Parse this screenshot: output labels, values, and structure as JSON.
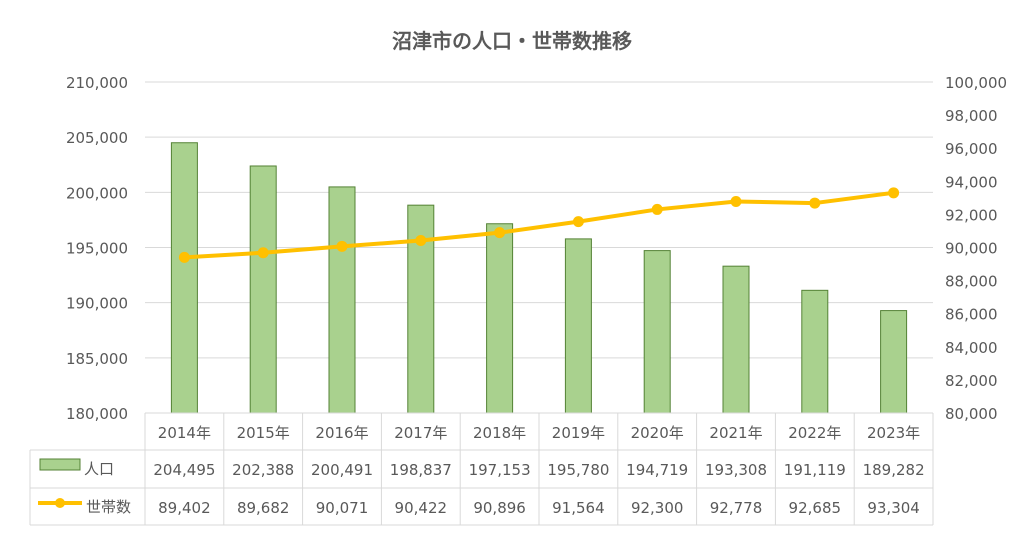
{
  "chart_data": {
    "type": "bar+line",
    "title": "沼津市の人口・世帯数推移",
    "categories": [
      "2014年",
      "2015年",
      "2016年",
      "2017年",
      "2018年",
      "2019年",
      "2020年",
      "2021年",
      "2022年",
      "2023年"
    ],
    "series": [
      {
        "name": "人口",
        "type": "bar",
        "axis": "left",
        "color": "#a9d18e",
        "edge_color": "#548235",
        "values": [
          204495,
          202388,
          200491,
          198837,
          197153,
          195780,
          194719,
          193308,
          191119,
          189282
        ],
        "labels": [
          "204,495",
          "202,388",
          "200,491",
          "198,837",
          "197,153",
          "195,780",
          "194,719",
          "193,308",
          "191,119",
          "189,282"
        ]
      },
      {
        "name": "世帯数",
        "type": "line",
        "axis": "right",
        "color": "#ffc000",
        "values": [
          89402,
          89682,
          90071,
          90422,
          90896,
          91564,
          92300,
          92778,
          92685,
          93304
        ],
        "labels": [
          "89,402",
          "89,682",
          "90,071",
          "90,422",
          "90,896",
          "91,564",
          "92,300",
          "92,778",
          "92,685",
          "93,304"
        ]
      }
    ],
    "y_left": {
      "range": [
        180000,
        210000
      ],
      "ticks": [
        "180,000",
        "185,000",
        "190,000",
        "195,000",
        "200,000",
        "205,000",
        "210,000"
      ]
    },
    "y_right": {
      "range": [
        80000,
        100000
      ],
      "ticks": [
        "80,000",
        "82,000",
        "84,000",
        "86,000",
        "88,000",
        "90,000",
        "92,000",
        "94,000",
        "96,000",
        "98,000",
        "100,000"
      ]
    },
    "grid": true,
    "legend": "data-table"
  }
}
